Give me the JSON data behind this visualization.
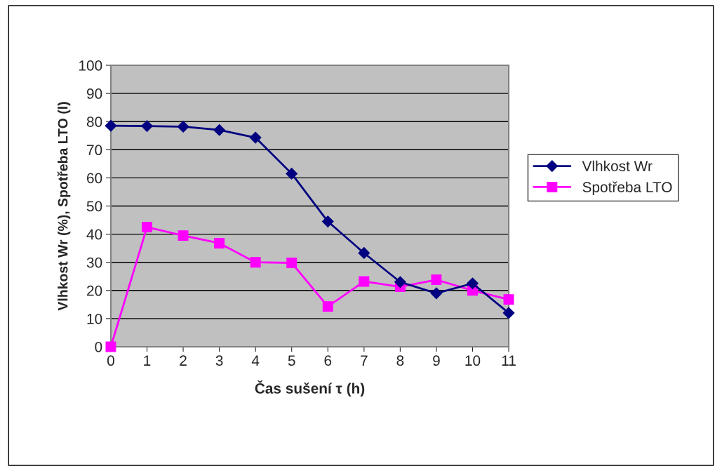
{
  "chart_data": {
    "type": "line",
    "xlabel": "Čas sušení τ (h)",
    "ylabel": "Vlhkost Wr (%), Spotřeba LTO (l)",
    "x": [
      0,
      1,
      2,
      3,
      4,
      5,
      6,
      7,
      8,
      9,
      10,
      11
    ],
    "series": [
      {
        "name": "Vlhkost Wr",
        "color": "#000080",
        "marker": "diamond",
        "values": [
          78.5,
          78.4,
          78.2,
          77,
          74.3,
          61.5,
          44.5,
          33.3,
          23,
          19,
          22.5,
          12
        ]
      },
      {
        "name": "Spotřeba LTO",
        "color": "#ff00ff",
        "marker": "square",
        "values": [
          0,
          42.5,
          39.5,
          36.8,
          30,
          29.8,
          14.3,
          23.2,
          21.3,
          23.8,
          20,
          16.8
        ]
      }
    ],
    "xlim": [
      0,
      11
    ],
    "xticks": [
      0,
      1,
      2,
      3,
      4,
      5,
      6,
      7,
      8,
      9,
      10,
      11
    ],
    "ylim": [
      0,
      100
    ],
    "yticks": [
      0,
      10,
      20,
      30,
      40,
      50,
      60,
      70,
      80,
      90,
      100
    ],
    "grid": "y",
    "legend": "right",
    "line_style": "solid"
  }
}
